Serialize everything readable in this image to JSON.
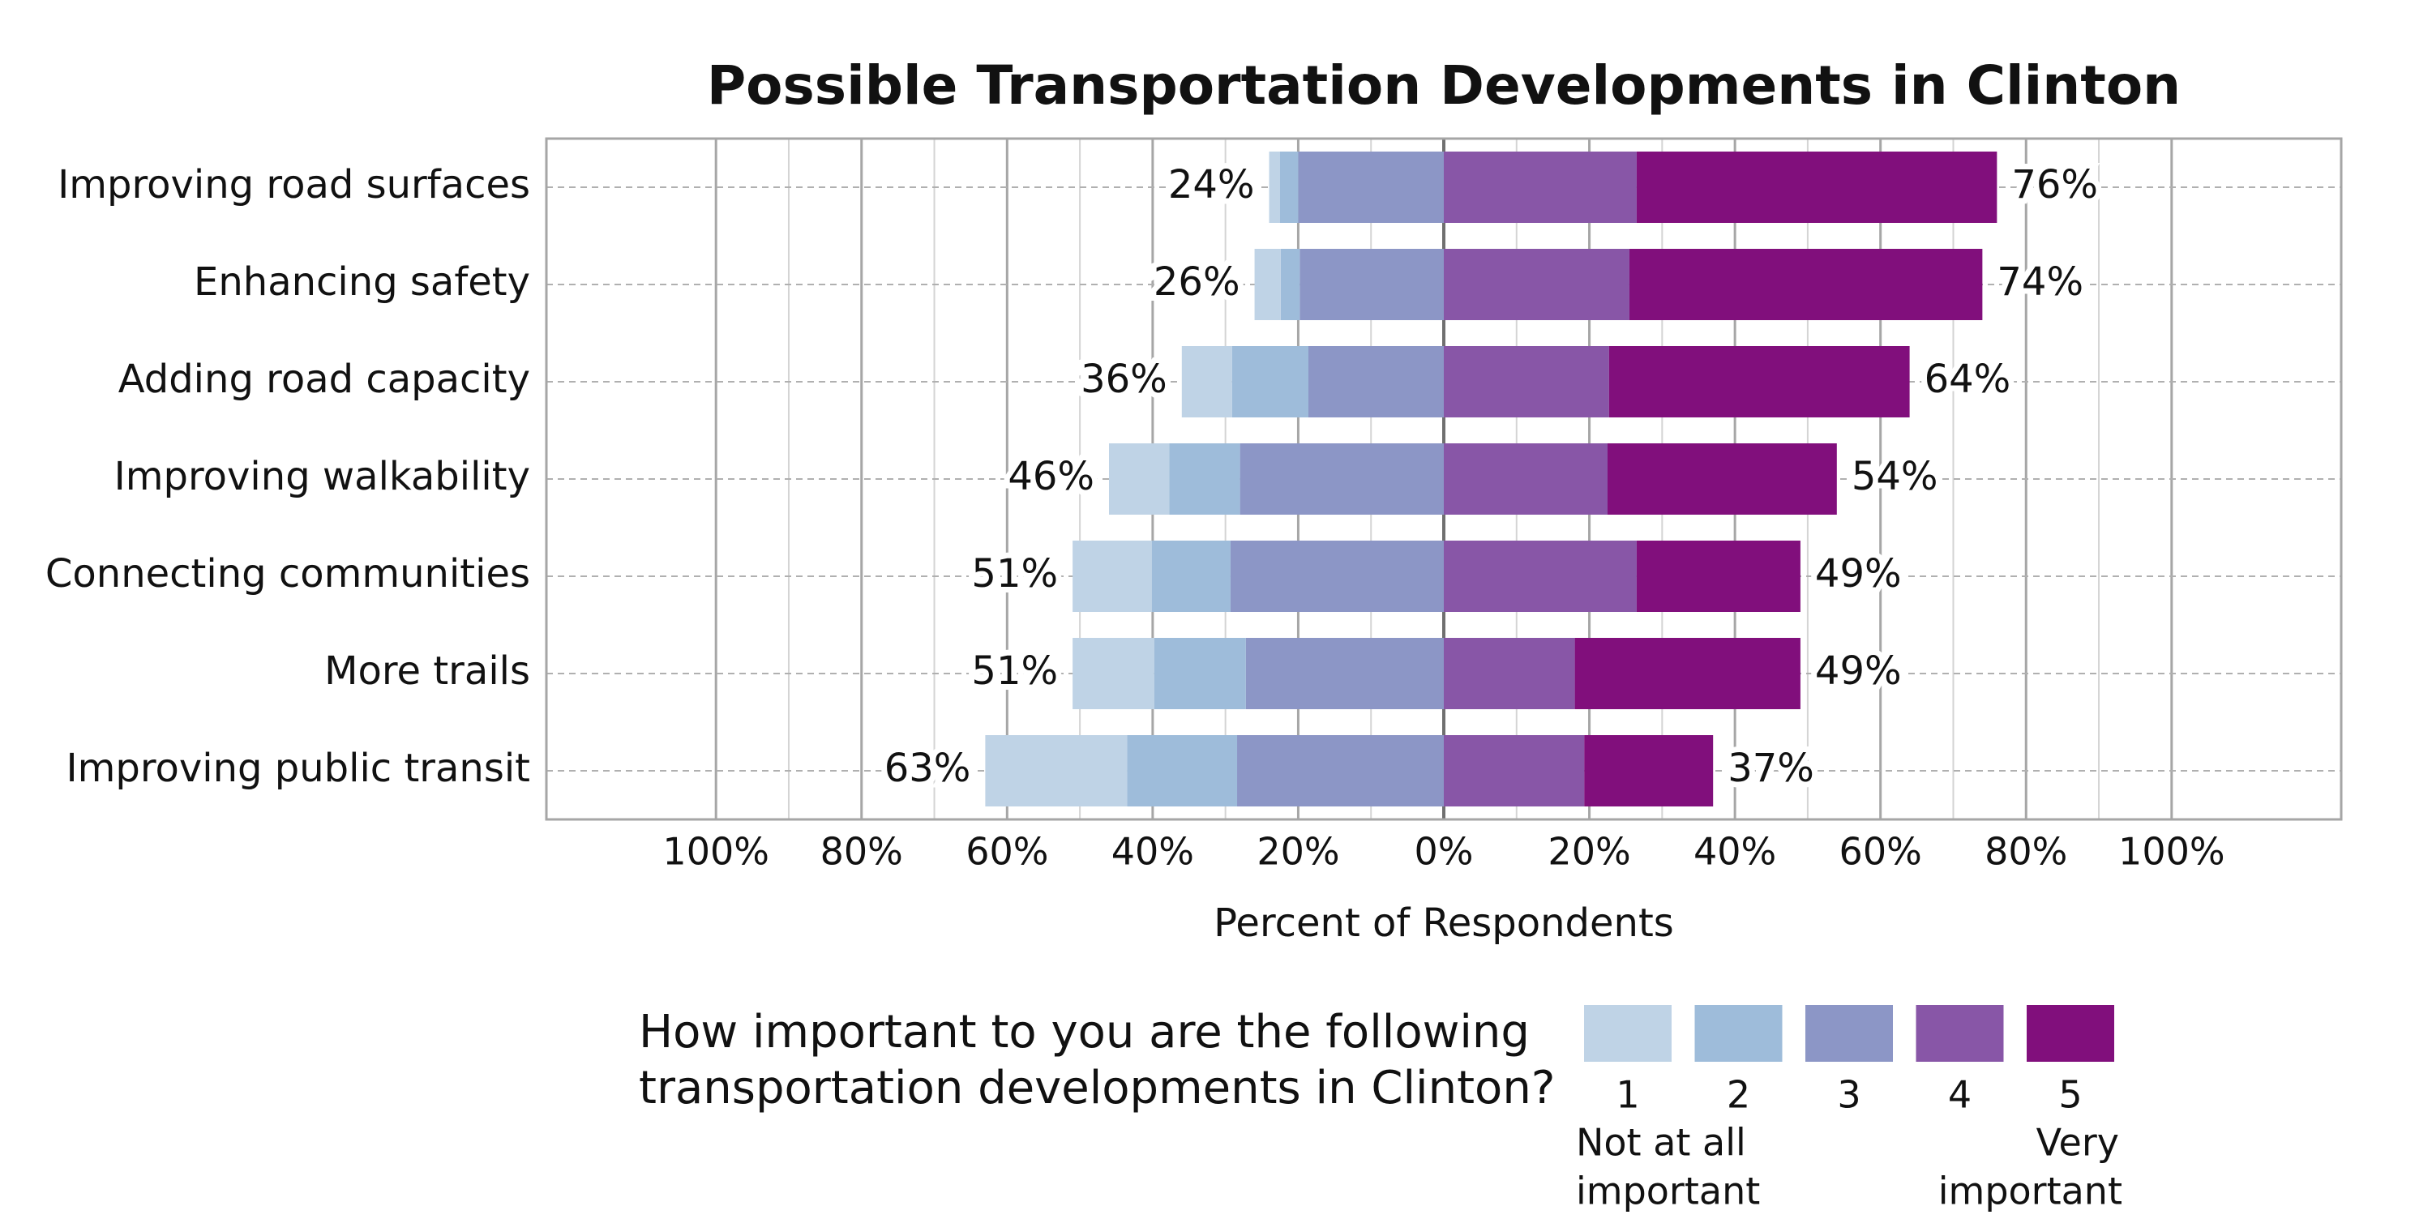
{
  "chart_data": {
    "type": "diverging_bar",
    "title": "Possible Transportation Developments in Clinton",
    "x_label": "Percent of Respondents",
    "categories": [
      "Improving road surfaces",
      "Enhancing safety",
      "Adding road capacity",
      "Improving walkability",
      "Connecting communities",
      "More trails",
      "Improving public transit"
    ],
    "series": [
      {
        "name": "1",
        "color": "#bfd3e6",
        "side": "left",
        "values": [
          1.5,
          3.6,
          6.9,
          8.3,
          10.9,
          11.2,
          19.5
        ]
      },
      {
        "name": "2",
        "color": "#9ebcda",
        "side": "left",
        "values": [
          2.5,
          2.6,
          10.5,
          9.7,
          10.8,
          12.6,
          15.1
        ]
      },
      {
        "name": "3",
        "color": "#8c96c6",
        "side": "left",
        "values": [
          20,
          19.8,
          18.6,
          28,
          29.3,
          27.2,
          28.4
        ]
      },
      {
        "name": "4",
        "color": "#8856a7",
        "side": "right",
        "values": [
          26.5,
          25.5,
          22.7,
          22.5,
          26.5,
          18,
          19.3
        ]
      },
      {
        "name": "5",
        "color": "#810f7c",
        "side": "right",
        "values": [
          49.5,
          48.5,
          41.3,
          31.5,
          22.5,
          31,
          17.7
        ]
      }
    ],
    "left_totals": {
      "values": [
        24,
        26,
        36,
        46,
        51,
        51,
        63
      ],
      "value_labels": [
        "24%",
        "26%",
        "36%",
        "46%",
        "51%",
        "51%",
        "63%"
      ]
    },
    "right_totals": {
      "values": [
        76,
        74,
        64,
        54,
        49,
        49,
        37
      ],
      "value_labels": [
        "76%",
        "74%",
        "64%",
        "54%",
        "49%",
        "49%",
        "37%"
      ]
    },
    "xlim": [
      -123.3,
      123.3
    ],
    "xticks": [
      {
        "value": -100,
        "label": "100%"
      },
      {
        "value": -80,
        "label": "80%"
      },
      {
        "value": -60,
        "label": "60%"
      },
      {
        "value": -40,
        "label": "40%"
      },
      {
        "value": -20,
        "label": "20%"
      },
      {
        "value": 0,
        "label": "0%"
      },
      {
        "value": 20,
        "label": "20%"
      },
      {
        "value": 40,
        "label": "40%"
      },
      {
        "value": 60,
        "label": "60%"
      },
      {
        "value": 80,
        "label": "80%"
      },
      {
        "value": 100,
        "label": "100%"
      }
    ],
    "x_minor_grid": [
      -90,
      -70,
      -50,
      -30,
      -10,
      10,
      30,
      50,
      70,
      90
    ],
    "grid": true,
    "legend": {
      "title": [
        "How important to you are the following",
        "transportation developments in Clinton?"
      ],
      "low_label": [
        "Not at all",
        "important"
      ],
      "high_label": [
        "Very",
        "important"
      ]
    }
  }
}
